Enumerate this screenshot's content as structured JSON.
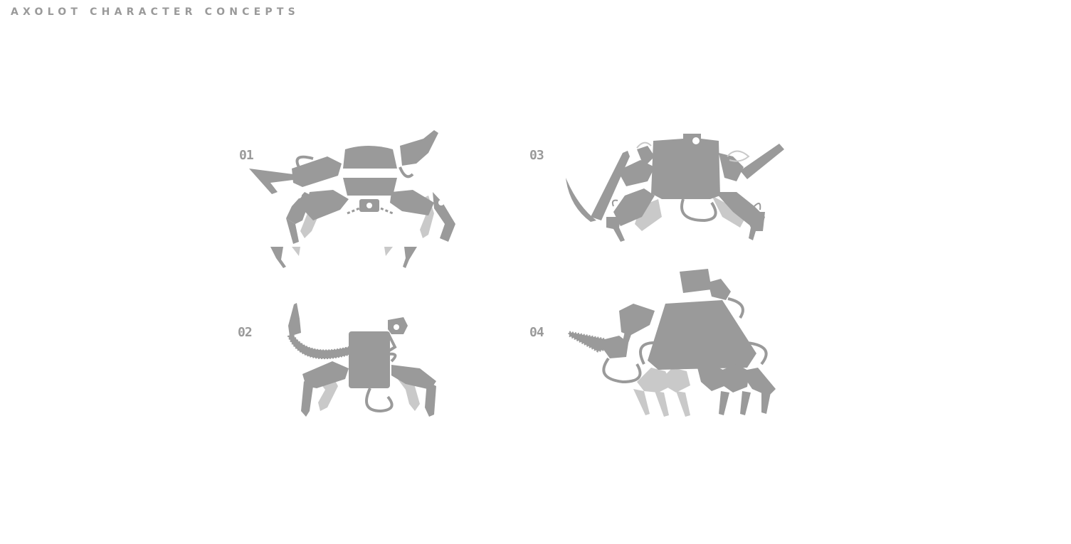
{
  "page": {
    "title": "AXOLOT CHARACTER CONCEPTS"
  },
  "concepts": [
    {
      "number": "01",
      "icon": "crab-robot-claws-icon"
    },
    {
      "number": "02",
      "icon": "robot-tail-cannon-icon"
    },
    {
      "number": "03",
      "icon": "robot-scythe-icon"
    },
    {
      "number": "04",
      "icon": "robot-chainsaw-icon"
    }
  ],
  "colors": {
    "title": "#9a9a9a",
    "silhouette_dark": "#9a9a9a",
    "silhouette_light": "#c9c9c9",
    "background": "#ffffff"
  }
}
